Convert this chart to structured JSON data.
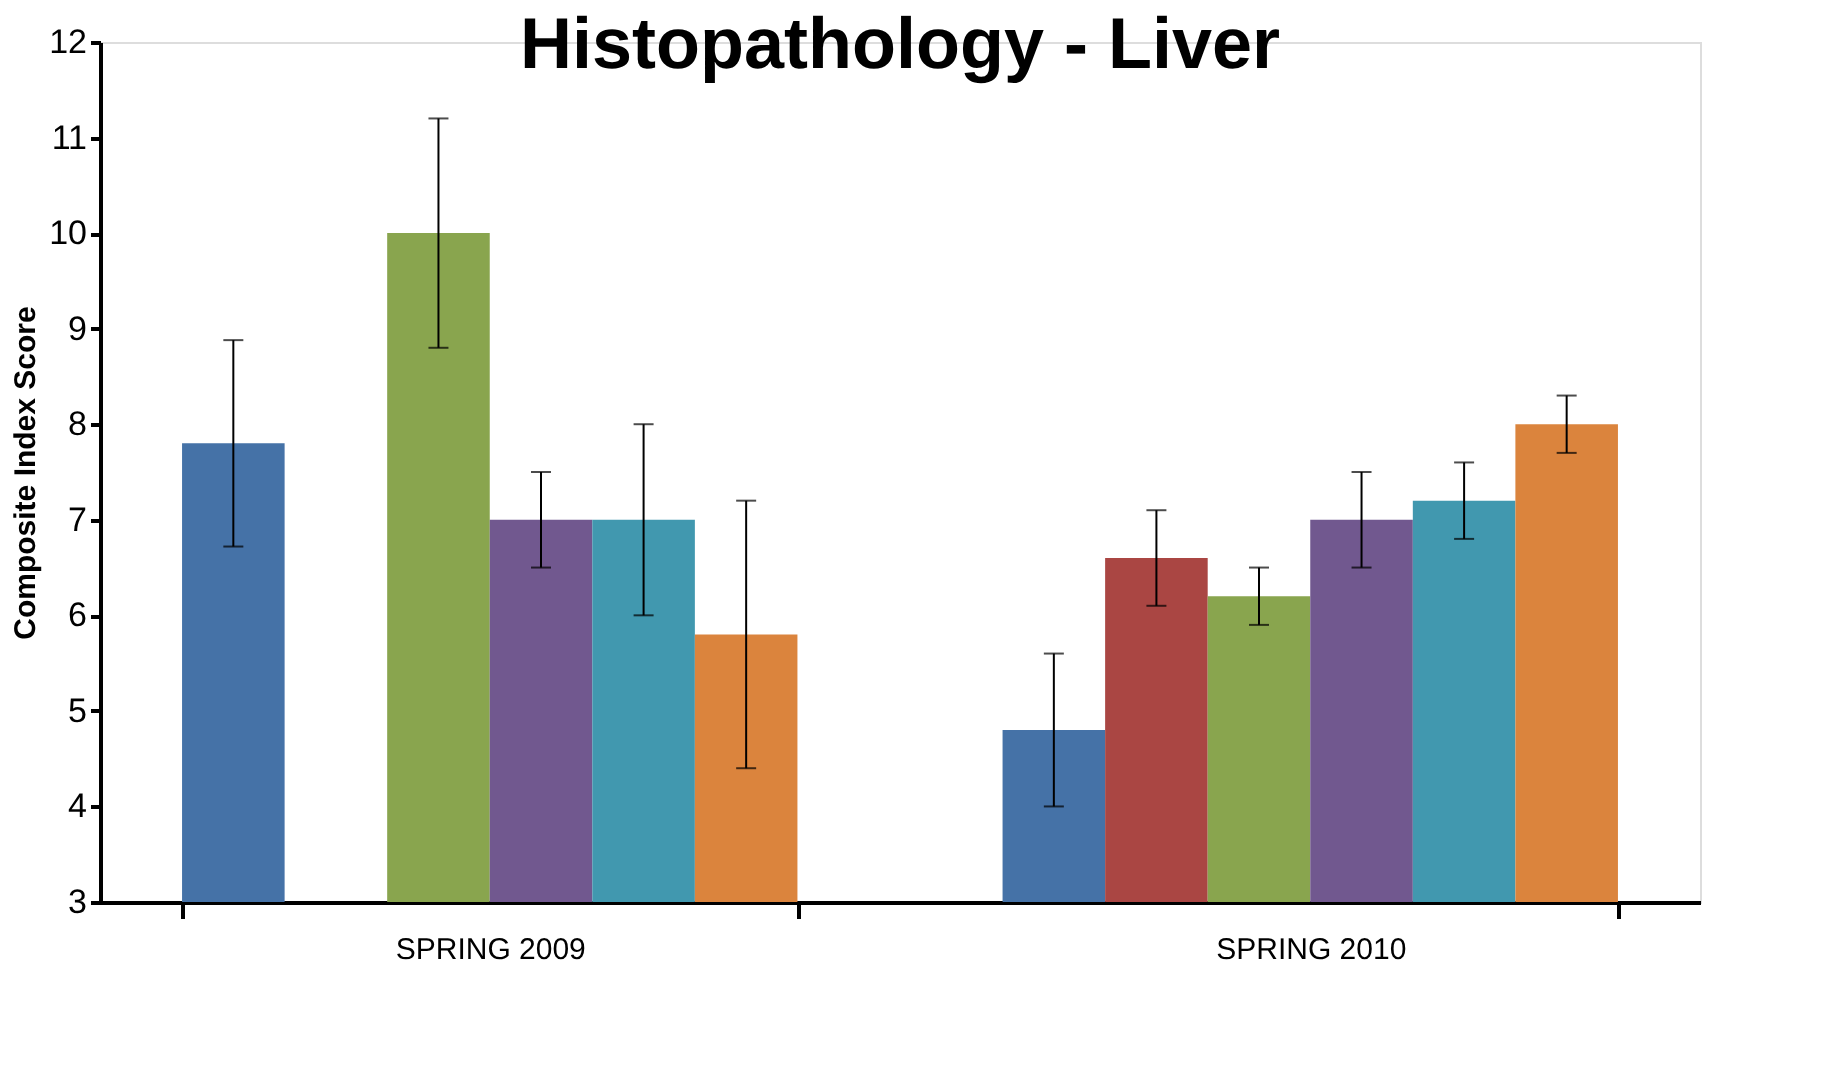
{
  "chart_data": {
    "type": "bar",
    "title": "Histopathology - Liver",
    "ylabel": "Composite Index Score",
    "categories": [
      "SPRING 2009",
      "SPRING 2010"
    ],
    "series": [
      {
        "color": "#4572a7",
        "values": [
          7.8,
          4.8
        ],
        "errors": [
          1.08,
          0.8
        ]
      },
      {
        "color": "#aa4643",
        "values": [
          null,
          6.6
        ],
        "errors": [
          null,
          0.5
        ]
      },
      {
        "color": "#89a54e",
        "values": [
          10,
          6.2
        ],
        "errors": [
          1.2,
          0.3
        ]
      },
      {
        "color": "#71588f",
        "values": [
          7,
          7
        ],
        "errors": [
          0.5,
          0.5
        ]
      },
      {
        "color": "#4198af",
        "values": [
          7,
          7.2
        ],
        "errors": [
          1,
          0.4
        ]
      },
      {
        "color": "#db843d",
        "values": [
          5.8,
          8
        ],
        "errors": [
          1.4,
          0.3
        ]
      }
    ],
    "ylim": [
      3,
      12
    ],
    "yticks": [
      3,
      4,
      5,
      6,
      7,
      8,
      9,
      10,
      11,
      12
    ],
    "grid": false,
    "legend": false
  }
}
